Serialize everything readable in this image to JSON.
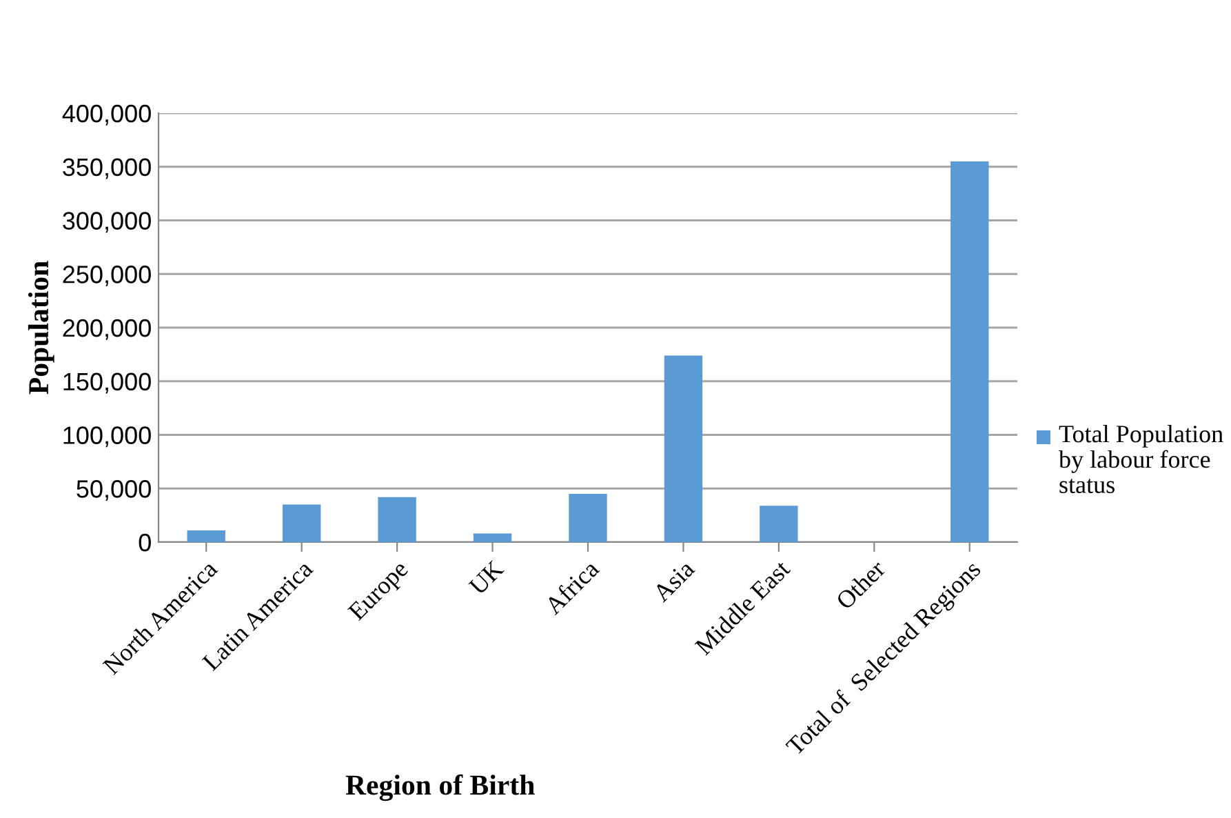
{
  "chart_data": {
    "type": "bar",
    "xlabel": "Region of Birth",
    "ylabel": "Population",
    "categories": [
      "North America",
      "Latin America",
      "Europe",
      "UK",
      "Africa",
      "Asia",
      "Middle East",
      "Other",
      "Total of  Selected Regions"
    ],
    "series": [
      {
        "name": "Total Population by labour force status",
        "color": "#5b9bd5",
        "values": [
          11000,
          35000,
          42000,
          8000,
          45000,
          174000,
          34000,
          0,
          355000
        ]
      }
    ],
    "ylim": [
      0,
      400000
    ],
    "yticks": [
      {
        "value": 0,
        "label": "0"
      },
      {
        "value": 50000,
        "label": "50,000"
      },
      {
        "value": 100000,
        "label": "100,000"
      },
      {
        "value": 150000,
        "label": "150,000"
      },
      {
        "value": 200000,
        "label": "200,000"
      },
      {
        "value": 250000,
        "label": "250,000"
      },
      {
        "value": 300000,
        "label": "300,000"
      },
      {
        "value": 350000,
        "label": "350,000"
      },
      {
        "value": 400000,
        "label": "400,000"
      }
    ],
    "grid": "y",
    "legend": "right"
  }
}
